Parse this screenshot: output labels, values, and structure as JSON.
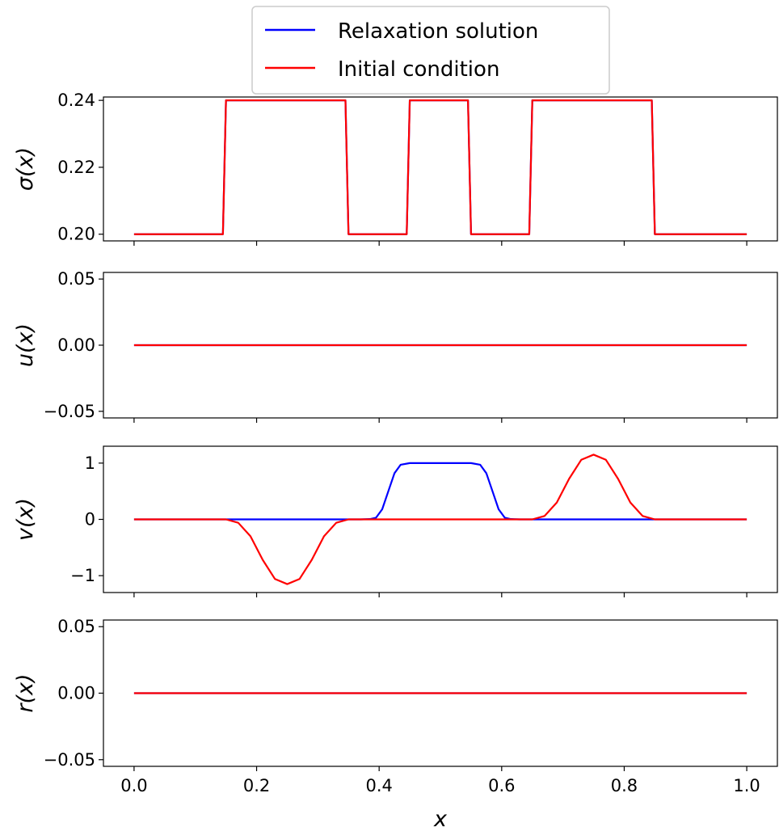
{
  "legend": {
    "entries": [
      {
        "label": "Relaxation solution",
        "color": "#0000ff"
      },
      {
        "label": "Initial condition",
        "color": "#ff0000"
      }
    ]
  },
  "xlabel": "x",
  "x_ticks": [
    "0.0",
    "0.2",
    "0.4",
    "0.6",
    "0.8",
    "1.0"
  ],
  "chart_data": [
    {
      "type": "line",
      "ylabel": "σ(x)",
      "xlim": [
        -0.05,
        1.05
      ],
      "ylim": [
        0.198,
        0.241
      ],
      "y_ticks": [
        0.2,
        0.22,
        0.24
      ],
      "y_tick_labels": [
        "0.20",
        "0.22",
        "0.24"
      ],
      "series": [
        {
          "name": "Relaxation solution",
          "color": "#0000ff",
          "x": [
            0,
            0.145,
            0.15,
            0.345,
            0.35,
            0.445,
            0.45,
            0.545,
            0.55,
            0.645,
            0.65,
            0.845,
            0.85,
            1.0
          ],
          "y": [
            0.2,
            0.2,
            0.24,
            0.24,
            0.2,
            0.2,
            0.24,
            0.24,
            0.2,
            0.2,
            0.24,
            0.24,
            0.2,
            0.2
          ]
        },
        {
          "name": "Initial condition",
          "color": "#ff0000",
          "x": [
            0,
            0.145,
            0.15,
            0.345,
            0.35,
            0.445,
            0.45,
            0.545,
            0.55,
            0.645,
            0.65,
            0.845,
            0.85,
            1.0
          ],
          "y": [
            0.2,
            0.2,
            0.24,
            0.24,
            0.2,
            0.2,
            0.24,
            0.24,
            0.2,
            0.2,
            0.24,
            0.24,
            0.2,
            0.2
          ]
        }
      ]
    },
    {
      "type": "line",
      "ylabel": "u(x)",
      "xlim": [
        -0.05,
        1.05
      ],
      "ylim": [
        -0.055,
        0.055
      ],
      "y_ticks": [
        0.05,
        0.0,
        -0.05
      ],
      "y_tick_labels": [
        "0.05",
        "0.00",
        "−0.05"
      ],
      "series": [
        {
          "name": "Relaxation solution",
          "color": "#0000ff",
          "x": [
            0,
            1.0
          ],
          "y": [
            0,
            0
          ]
        },
        {
          "name": "Initial condition",
          "color": "#ff0000",
          "x": [
            0,
            1.0
          ],
          "y": [
            0,
            0
          ]
        }
      ]
    },
    {
      "type": "line",
      "ylabel": "v(x)",
      "xlim": [
        -0.05,
        1.05
      ],
      "ylim": [
        -1.3,
        1.3
      ],
      "y_ticks": [
        1,
        0,
        -1
      ],
      "y_tick_labels": [
        "1",
        "0",
        "−1"
      ],
      "series": [
        {
          "name": "Relaxation solution",
          "color": "#0000ff",
          "x": [
            0,
            0.37,
            0.385,
            0.395,
            0.405,
            0.415,
            0.425,
            0.435,
            0.45,
            0.5,
            0.55,
            0.565,
            0.575,
            0.585,
            0.595,
            0.605,
            0.615,
            0.63,
            1.0
          ],
          "y": [
            0,
            0,
            0.005,
            0.03,
            0.18,
            0.5,
            0.82,
            0.97,
            1.0,
            1.0,
            1.0,
            0.97,
            0.82,
            0.5,
            0.18,
            0.03,
            0.005,
            0,
            0
          ]
        },
        {
          "name": "Initial condition",
          "color": "#ff0000",
          "x": [
            0,
            0.15,
            0.17,
            0.19,
            0.21,
            0.23,
            0.25,
            0.27,
            0.29,
            0.31,
            0.33,
            0.35,
            0.65,
            0.67,
            0.69,
            0.71,
            0.73,
            0.75,
            0.77,
            0.79,
            0.81,
            0.83,
            0.85,
            1.0
          ],
          "y": [
            0,
            0,
            -0.06,
            -0.3,
            -0.72,
            -1.06,
            -1.15,
            -1.06,
            -0.72,
            -0.3,
            -0.06,
            0,
            0,
            0.06,
            0.3,
            0.72,
            1.06,
            1.15,
            1.06,
            0.72,
            0.3,
            0.06,
            0,
            0
          ]
        }
      ]
    },
    {
      "type": "line",
      "ylabel": "r(x)",
      "xlim": [
        -0.05,
        1.05
      ],
      "ylim": [
        -0.055,
        0.055
      ],
      "y_ticks": [
        0.05,
        0.0,
        -0.05
      ],
      "y_tick_labels": [
        "0.05",
        "0.00",
        "−0.05"
      ],
      "series": [
        {
          "name": "Relaxation solution",
          "color": "#0000ff",
          "x": [
            0,
            1.0
          ],
          "y": [
            0,
            0
          ]
        },
        {
          "name": "Initial condition",
          "color": "#ff0000",
          "x": [
            0,
            1.0
          ],
          "y": [
            0,
            0
          ]
        }
      ]
    }
  ]
}
